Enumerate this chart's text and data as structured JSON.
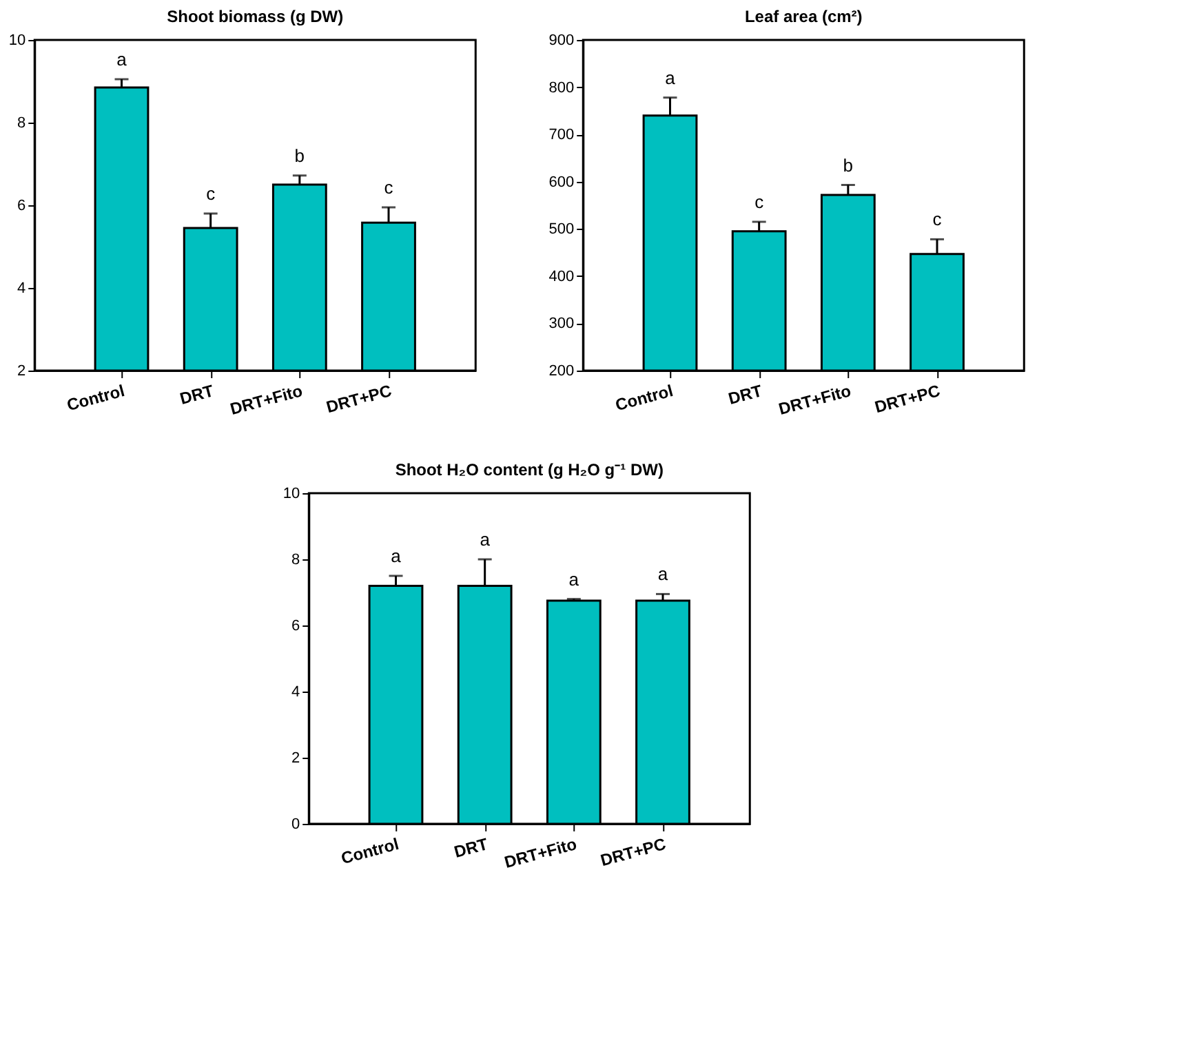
{
  "chart_data": [
    {
      "type": "bar",
      "title": "Shoot biomass (g DW)",
      "categories": [
        "Control",
        "DRT",
        "DRT+Fito",
        "DRT+PC"
      ],
      "values": [
        8.85,
        5.45,
        6.5,
        5.58
      ],
      "color": "#00bfbf",
      "errors": [
        [
          8.85,
          9.05
        ],
        [
          5.45,
          5.8
        ],
        [
          6.5,
          6.72
        ],
        [
          5.58,
          5.95
        ]
      ],
      "ylim": [
        2,
        10
      ],
      "yticks": [
        2,
        4,
        6,
        8,
        10
      ],
      "grid": false,
      "annotations": [
        {
          "text": "a",
          "x": "Control",
          "y": 9.05
        },
        {
          "text": "c",
          "x": "DRT",
          "y": 5.8
        },
        {
          "text": "b",
          "x": "DRT+Fito",
          "y": 6.72
        },
        {
          "text": "c",
          "x": "DRT+PC",
          "y": 5.95
        }
      ]
    },
    {
      "type": "bar",
      "title": "Leaf area (cm²)",
      "categories": [
        "Control",
        "DRT",
        "DRT+Fito",
        "DRT+PC"
      ],
      "values": [
        740,
        495,
        572,
        447
      ],
      "color": "#00bfbf",
      "errors": [
        [
          740,
          778
        ],
        [
          495,
          515
        ],
        [
          572,
          593
        ],
        [
          447,
          478
        ]
      ],
      "ylim": [
        200,
        900
      ],
      "yticks": [
        200,
        300,
        400,
        500,
        600,
        700,
        800,
        900
      ],
      "grid": false,
      "annotations": [
        {
          "text": "a",
          "x": "Control",
          "y": 778
        },
        {
          "text": "c",
          "x": "DRT",
          "y": 515
        },
        {
          "text": "b",
          "x": "DRT+Fito",
          "y": 593
        },
        {
          "text": "c",
          "x": "DRT+PC",
          "y": 478
        }
      ]
    },
    {
      "type": "bar",
      "title": "Shoot H₂O content (g H₂O g⁻¹ DW)",
      "categories": [
        "Control",
        "DRT",
        "DRT+Fito",
        "DRT+PC"
      ],
      "values": [
        7.2,
        7.2,
        6.75,
        6.75
      ],
      "color": "#00bfbf",
      "errors": [
        [
          7.2,
          7.5
        ],
        [
          7.2,
          8.0
        ],
        [
          6.75,
          6.8
        ],
        [
          6.75,
          6.95
        ]
      ],
      "ylim": [
        0,
        10
      ],
      "yticks": [
        0,
        2,
        4,
        6,
        8,
        10
      ],
      "grid": false,
      "annotations": [
        {
          "text": "a",
          "x": "Control",
          "y": 7.5
        },
        {
          "text": "a",
          "x": "DRT",
          "y": 8.0
        },
        {
          "text": "a",
          "x": "DRT+Fito",
          "y": 6.8
        },
        {
          "text": "a",
          "x": "DRT+PC",
          "y": 6.95
        }
      ]
    }
  ]
}
